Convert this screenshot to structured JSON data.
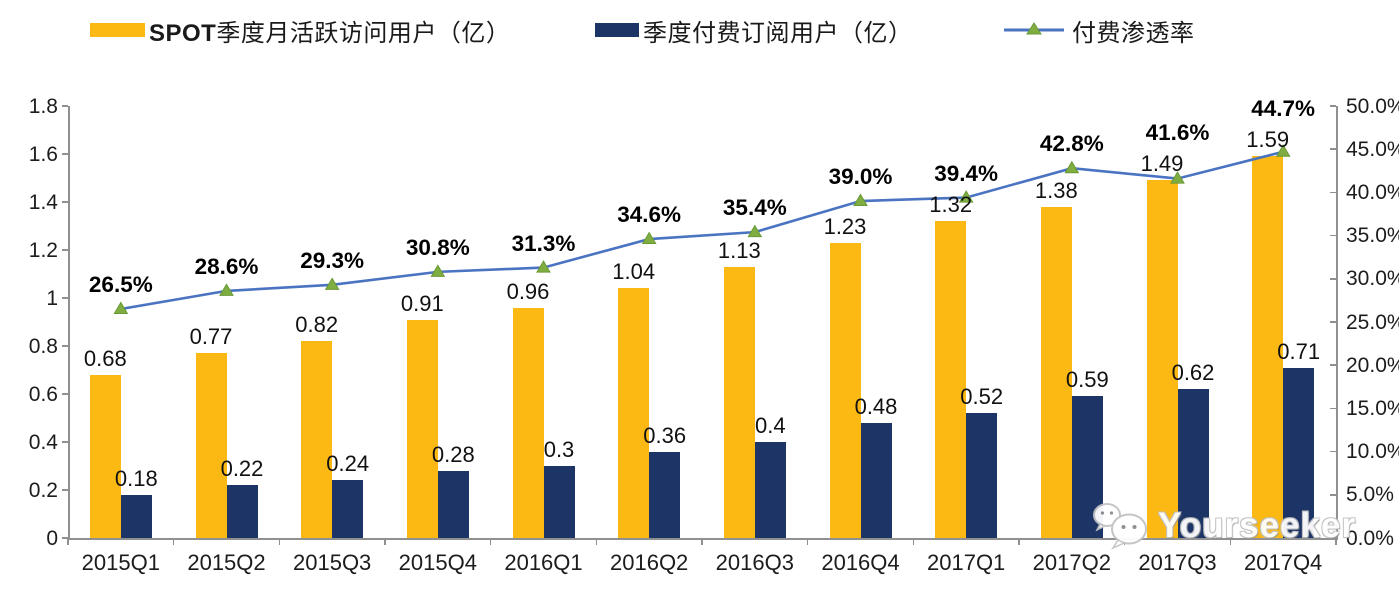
{
  "legend": [
    {
      "prefix": "SPOT",
      "label": "季度月活跃访问用户（亿）",
      "color": "#FDB913",
      "type": "bar"
    },
    {
      "prefix": "",
      "label": "季度付费订阅用户（亿）",
      "color": "#1C3566",
      "type": "bar"
    },
    {
      "prefix": "",
      "label": "付费渗透率",
      "color": "#4A73C2",
      "marker_color": "#7FAD42",
      "type": "line"
    }
  ],
  "watermark": {
    "text": "Yourseeker",
    "icon": "wechat-icon"
  },
  "colors": {
    "mau_bar": "#FDB913",
    "subs_bar": "#1C3566",
    "line": "#4A73C2",
    "marker": "#7FAD42",
    "axis": "#909090",
    "label_text": "#111111"
  },
  "chart_data": {
    "type": "bar",
    "subtype": "grouped bars with secondary-axis line",
    "categories": [
      "2015Q1",
      "2015Q2",
      "2015Q3",
      "2015Q4",
      "2016Q1",
      "2016Q2",
      "2016Q3",
      "2016Q4",
      "2017Q1",
      "2017Q2",
      "2017Q3",
      "2017Q4"
    ],
    "series": [
      {
        "name": "SPOT季度月活跃访问用户（亿）",
        "type": "bar",
        "axis": "left",
        "color": "#FDB913",
        "values": [
          0.68,
          0.77,
          0.82,
          0.91,
          0.96,
          1.04,
          1.13,
          1.23,
          1.32,
          1.38,
          1.49,
          1.59
        ],
        "labels": [
          "0.68",
          "0.77",
          "0.82",
          "0.91",
          "0.96",
          "1.04",
          "1.13",
          "1.23",
          "1.32",
          "1.38",
          "1.49",
          "1.59"
        ]
      },
      {
        "name": "季度付费订阅用户（亿）",
        "type": "bar",
        "axis": "left",
        "color": "#1C3566",
        "values": [
          0.18,
          0.22,
          0.24,
          0.28,
          0.3,
          0.36,
          0.4,
          0.48,
          0.52,
          0.59,
          0.62,
          0.71
        ],
        "labels": [
          "0.18",
          "0.22",
          "0.24",
          "0.28",
          "0.3",
          "0.36",
          "0.4",
          "0.48",
          "0.52",
          "0.59",
          "0.62",
          "0.71"
        ]
      },
      {
        "name": "付费渗透率",
        "type": "line",
        "axis": "right",
        "color": "#4A73C2",
        "marker": "triangle",
        "marker_color": "#7FAD42",
        "values": [
          26.5,
          28.6,
          29.3,
          30.8,
          31.3,
          34.6,
          35.4,
          39.0,
          39.4,
          42.8,
          41.6,
          44.7
        ],
        "labels": [
          "26.5%",
          "28.6%",
          "29.3%",
          "30.8%",
          "31.3%",
          "34.6%",
          "35.4%",
          "39.0%",
          "39.4%",
          "42.8%",
          "41.6%",
          "44.7%"
        ]
      }
    ],
    "left_axis": {
      "min": 0,
      "max": 1.8,
      "tick_labels": [
        "0",
        "0.2",
        "0.4",
        "0.6",
        "0.8",
        "1",
        "1.2",
        "1.4",
        "1.6",
        "1.8"
      ]
    },
    "right_axis": {
      "min": 0,
      "max": 50,
      "tick_labels": [
        "0.0%",
        "5.0%",
        "10.0%",
        "15.0%",
        "20.0%",
        "25.0%",
        "30.0%",
        "35.0%",
        "40.0%",
        "45.0%",
        "50.0%"
      ]
    },
    "grid": false,
    "legend_position": "top",
    "title": ""
  }
}
